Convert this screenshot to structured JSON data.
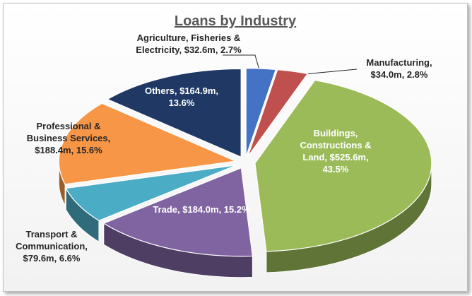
{
  "chart_data": {
    "type": "pie",
    "title": "Loans by Industry",
    "categories": [
      "Agriculture, Fisheries & Electricity",
      "Manufacturing",
      "Buildings, Constructions & Land",
      "Trade",
      "Transport & Communication",
      "Professional & Business Services",
      "Others"
    ],
    "values": [
      32.6,
      34.0,
      525.6,
      184.0,
      79.6,
      188.4,
      164.9
    ],
    "value_labels": [
      "$32.6m",
      "$34.0m",
      "$525.6m",
      "$184.0m",
      "$79.6m",
      "$188.4m",
      "$164.9m"
    ],
    "percentages": [
      2.7,
      2.8,
      43.5,
      15.2,
      6.6,
      15.6,
      13.6
    ],
    "percentage_labels": [
      "2.7%",
      "2.8%",
      "43.5%",
      "15.2%",
      "6.6%",
      "15.6%",
      "13.6%"
    ],
    "label_separator": ", ",
    "colors": [
      "#4472c4",
      "#c0504d",
      "#9bbb59",
      "#8064a2",
      "#4bacc6",
      "#f79646",
      "#1f3864"
    ]
  }
}
